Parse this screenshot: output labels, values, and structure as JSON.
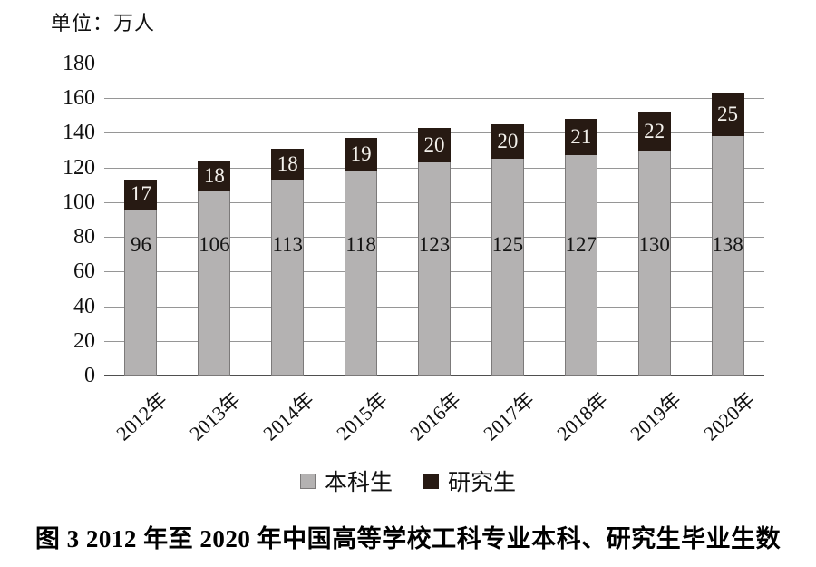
{
  "unit_label": "单位：万人",
  "caption": "图 3  2012 年至 2020 年中国高等学校工科专业本科、研究生毕业生数",
  "legend": [
    {
      "label": "本科生",
      "color": "#b4b2b2"
    },
    {
      "label": "研究生",
      "color": "#271a13"
    }
  ],
  "colors": {
    "undergrad_fill": "#b4b2b2",
    "undergrad_border": "#7c7a7a",
    "grad_fill": "#271a13",
    "gridline": "#969696",
    "axis_line": "#4f4f4f",
    "grad_label_text": "#f4f1ec",
    "under_label_text": "#141414"
  },
  "chart_data": {
    "type": "bar",
    "stacked": true,
    "title": "图 3  2012 年至 2020 年中国高等学校工科专业本科、研究生毕业生数",
    "xlabel": "",
    "ylabel": "单位：万人",
    "categories": [
      "2012年",
      "2013年",
      "2014年",
      "2015年",
      "2016年",
      "2017年",
      "2018年",
      "2019年",
      "2020年"
    ],
    "series": [
      {
        "name": "本科生",
        "values": [
          96,
          106,
          113,
          118,
          123,
          125,
          127,
          130,
          138
        ]
      },
      {
        "name": "研究生",
        "values": [
          17,
          18,
          18,
          19,
          20,
          20,
          21,
          22,
          25
        ]
      }
    ],
    "totals": [
      113,
      124,
      131,
      137,
      143,
      145,
      148,
      152,
      163
    ],
    "ylim": [
      0,
      180
    ],
    "ytick_step": 20,
    "yticks": [
      0,
      20,
      40,
      60,
      80,
      100,
      120,
      140,
      160,
      180
    ],
    "grid": true,
    "legend_position": "bottom"
  }
}
